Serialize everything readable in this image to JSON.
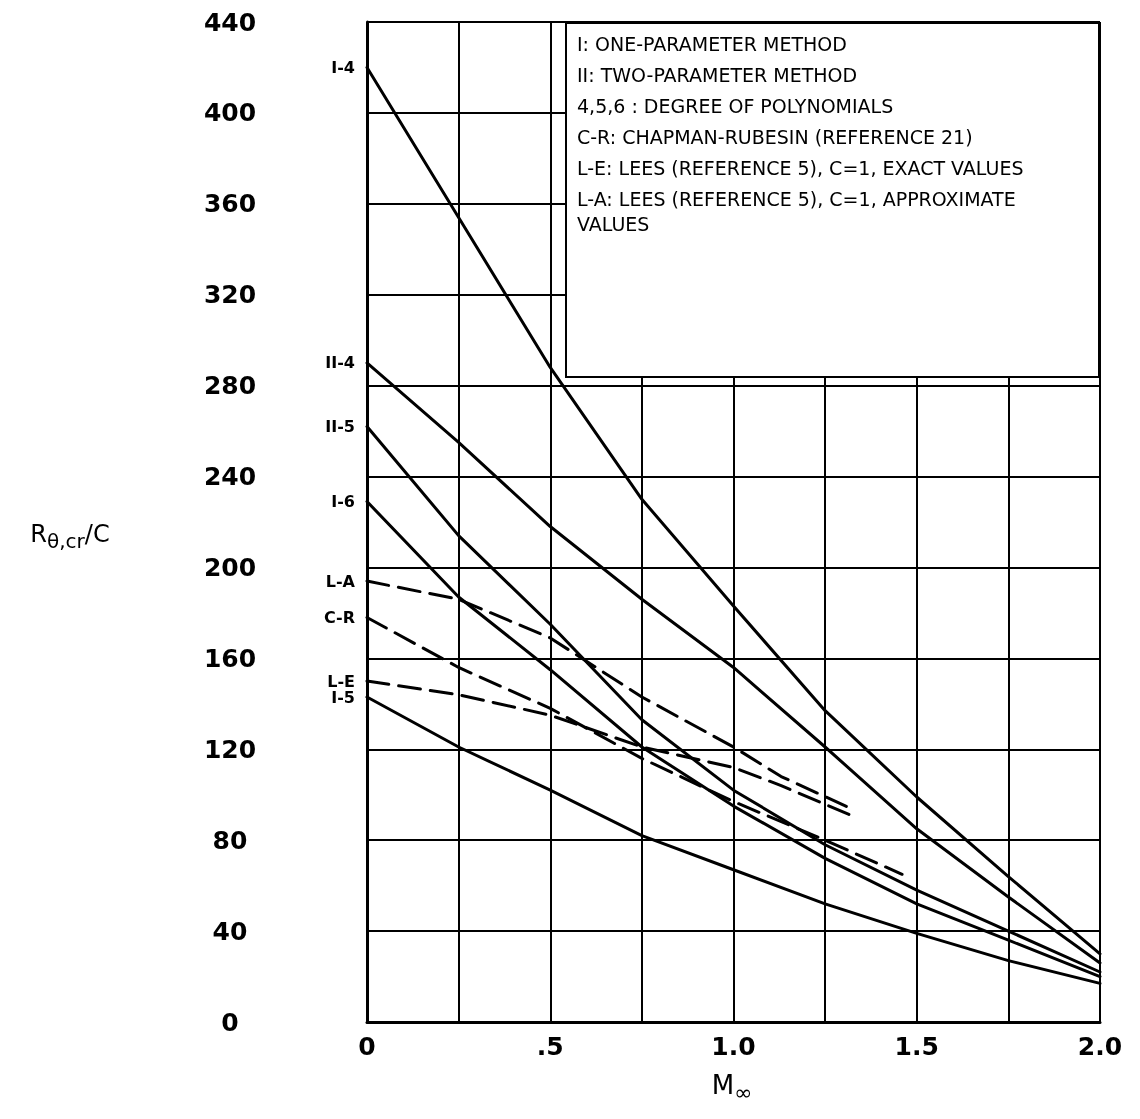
{
  "chart_data": {
    "type": "line",
    "xlabel": "M$_{∞}$",
    "ylabel": "R$_{θ,cr}$/C",
    "annotations": [
      "I: ONE-PARAMETER METHOD",
      "II: TWO-PARAMETER METHOD",
      "4,5,6 : DEGREE OF POLYNOMIALS",
      "C-R: CHAPMAN-RUBESIN (REFERENCE 21)",
      "L-E: LEES (REFERENCE 5), C=1, EXACT VALUES",
      "L-A: LEES (REFERENCE 5), C=1, APPROXIMATE VALUES"
    ],
    "xlim": [
      0,
      2
    ],
    "ylim": [
      0,
      440
    ],
    "xticks": [
      0,
      {
        "value": 0.25,
        "label": null
      },
      {
        "value": 0.5,
        "label": ".5"
      },
      {
        "value": 0.75,
        "label": null
      },
      {
        "value": 1,
        "label": "1.0"
      },
      {
        "value": 1.25,
        "label": null
      },
      {
        "value": 1.5,
        "label": "1.5"
      },
      {
        "value": 1.75,
        "label": null
      },
      {
        "value": 2,
        "label": "2.0"
      }
    ],
    "yticks": [
      0,
      40,
      80,
      120,
      160,
      200,
      240,
      280,
      320,
      360,
      400,
      440
    ],
    "grid": true,
    "marker": "none",
    "series": [
      {
        "name": "I-4",
        "color": "#000000",
        "line_style": "solid",
        "x": [
          0,
          0.25,
          0.5,
          0.75,
          1,
          1.25,
          1.5,
          1.75,
          2
        ],
        "values": [
          420,
          354,
          288,
          230,
          183,
          137,
          99,
          64,
          30
        ]
      },
      {
        "name": "II-4",
        "color": "#000000",
        "line_style": "solid",
        "x": [
          0,
          0.25,
          0.5,
          0.75,
          1,
          1.25,
          1.5,
          1.75,
          2
        ],
        "values": [
          290,
          255,
          218,
          186,
          156,
          121,
          85,
          55,
          26
        ]
      },
      {
        "name": "II-5",
        "color": "#000000",
        "line_style": "solid",
        "x": [
          0,
          0.25,
          0.5,
          0.75,
          1,
          1.25,
          1.5,
          1.75,
          2
        ],
        "values": [
          262,
          214,
          175,
          133,
          102,
          78,
          58,
          40,
          22
        ]
      },
      {
        "name": "I-6",
        "color": "#000000",
        "line_style": "solid",
        "x": [
          0,
          0.25,
          0.5,
          0.75,
          1,
          1.25,
          1.5,
          1.75,
          2
        ],
        "values": [
          229,
          187,
          155,
          121,
          95,
          72,
          52,
          36,
          20
        ]
      },
      {
        "name": "L-A",
        "color": "#000000",
        "line_style": "dashed",
        "x": [
          0,
          0.25,
          0.5,
          0.75,
          1,
          1.13,
          1.32
        ],
        "values": [
          194,
          186,
          169,
          143,
          121,
          108,
          94
        ]
      },
      {
        "name": "C-R",
        "color": "#000000",
        "line_style": "dashed",
        "x": [
          0,
          0.25,
          0.5,
          0.75,
          1,
          1.25,
          1.46
        ],
        "values": [
          178,
          156,
          138,
          116,
          97,
          80,
          65
        ]
      },
      {
        "name": "L-E",
        "color": "#000000",
        "line_style": "dashed",
        "x": [
          0,
          0.25,
          0.5,
          0.75,
          1,
          1.13,
          1.32
        ],
        "values": [
          150,
          144,
          135,
          121,
          112,
          104,
          91
        ]
      },
      {
        "name": "I-5",
        "color": "#000000",
        "line_style": "solid",
        "x": [
          0,
          0.25,
          0.5,
          0.75,
          1,
          1.25,
          1.5,
          1.75,
          2
        ],
        "values": [
          143,
          121,
          102,
          82,
          67,
          52,
          39,
          27,
          17
        ]
      }
    ]
  }
}
